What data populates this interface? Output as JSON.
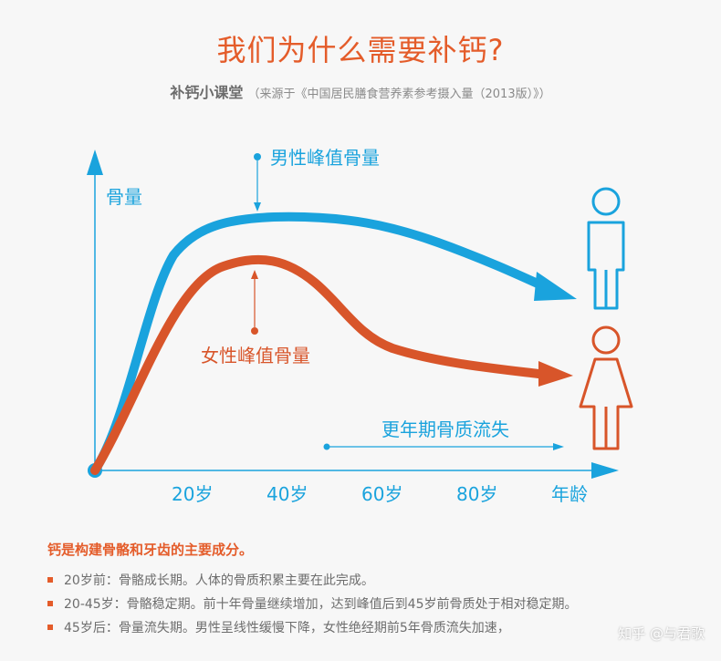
{
  "title": "我们为什么需要补钙?",
  "subtitle": {
    "strong": "补钙小课堂",
    "source": "（来源于《中国居民膳食营养素参考摄入量（2013版）》）"
  },
  "chart_data": {
    "type": "line",
    "ylabel": "骨量",
    "xlabel": "年龄",
    "categories": [
      "20岁",
      "40岁",
      "60岁",
      "80岁"
    ],
    "series": [
      {
        "name": "男性峰值骨量",
        "color": "#1aa3dd"
      },
      {
        "name": "女性峰值骨量",
        "color": "#d8552a"
      }
    ],
    "annotations": {
      "male_peak": "男性峰值骨量",
      "female_peak": "女性峰值骨量",
      "bone_loss": "更年期骨质流失"
    }
  },
  "notes": {
    "head": "钙是构建骨骼和牙齿的主要成分。",
    "items": [
      "20岁前：骨骼成长期。人体的骨质积累主要在此完成。",
      "20-45岁：骨骼稳定期。前十年骨量继续增加，达到峰值后到45岁前骨质处于相对稳定期。",
      "45岁后：骨量流失期。男性呈线性缓慢下降，女性绝经期前5年骨质流失加速，"
    ]
  },
  "watermark": "知乎 @与君歌",
  "colors": {
    "blue": "#1aa3dd",
    "orange": "#d8552a",
    "title": "#e45c2a"
  }
}
